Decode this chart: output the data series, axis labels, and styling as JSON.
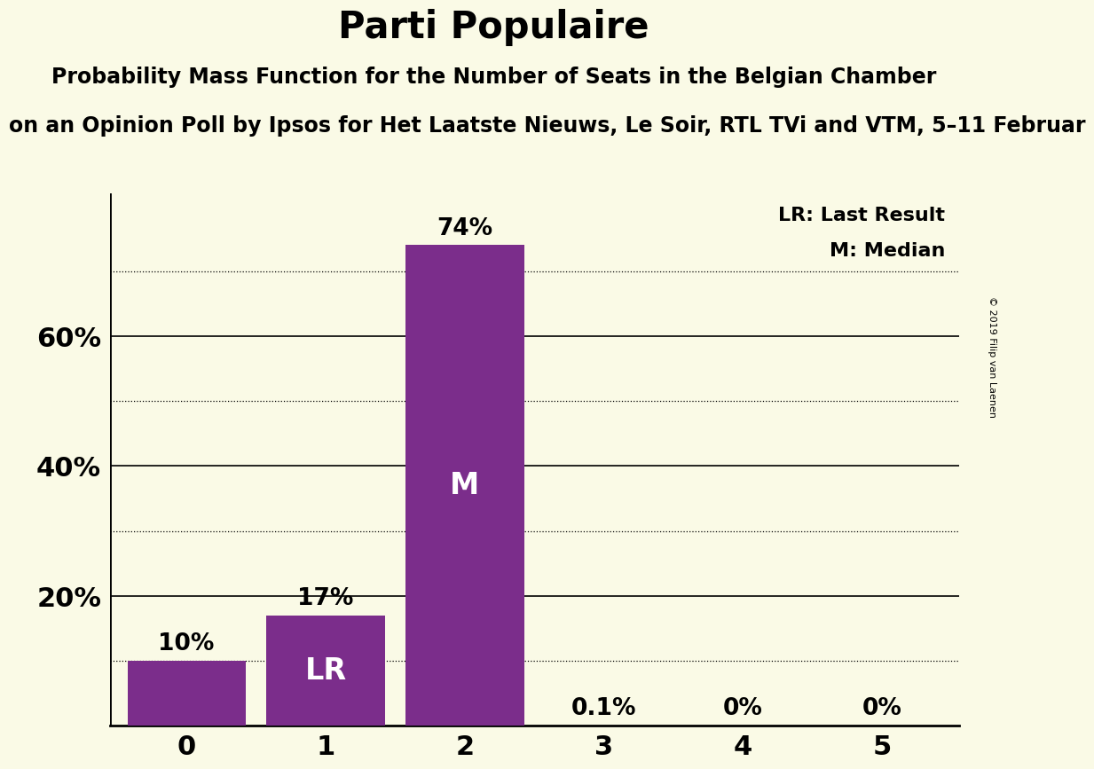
{
  "title": "Parti Populaire",
  "subtitle1": "Probability Mass Function for the Number of Seats in the Belgian Chamber",
  "subtitle2": "on an Opinion Poll by Ipsos for Het Laatste Nieuws, Le Soir, RTL TVi and VTM, 5–11 Februar",
  "copyright": "© 2019 Filip van Laenen",
  "categories": [
    0,
    1,
    2,
    3,
    4,
    5
  ],
  "values": [
    0.1,
    0.17,
    0.74,
    0.001,
    0.0,
    0.0
  ],
  "bar_color": "#7B2D8B",
  "background_color": "#FAFAE6",
  "bar_labels": [
    "10%",
    "17%",
    "74%",
    "0.1%",
    "0%",
    "0%"
  ],
  "bar_annotations": [
    null,
    "LR",
    "M",
    null,
    null,
    null
  ],
  "legend_lr": "LR: Last Result",
  "legend_m": "M: Median",
  "ylim": [
    0,
    0.82
  ],
  "yticks": [
    0.2,
    0.4,
    0.6
  ],
  "ytick_labels": [
    "20%",
    "40%",
    "60%"
  ],
  "minor_yticks": [
    0.1,
    0.3,
    0.5,
    0.7
  ],
  "title_fontsize": 30,
  "subtitle_fontsize": 17,
  "label_fontsize": 19,
  "axis_label_fontsize": 22,
  "annotation_fontsize": 24,
  "legend_fontsize": 16
}
